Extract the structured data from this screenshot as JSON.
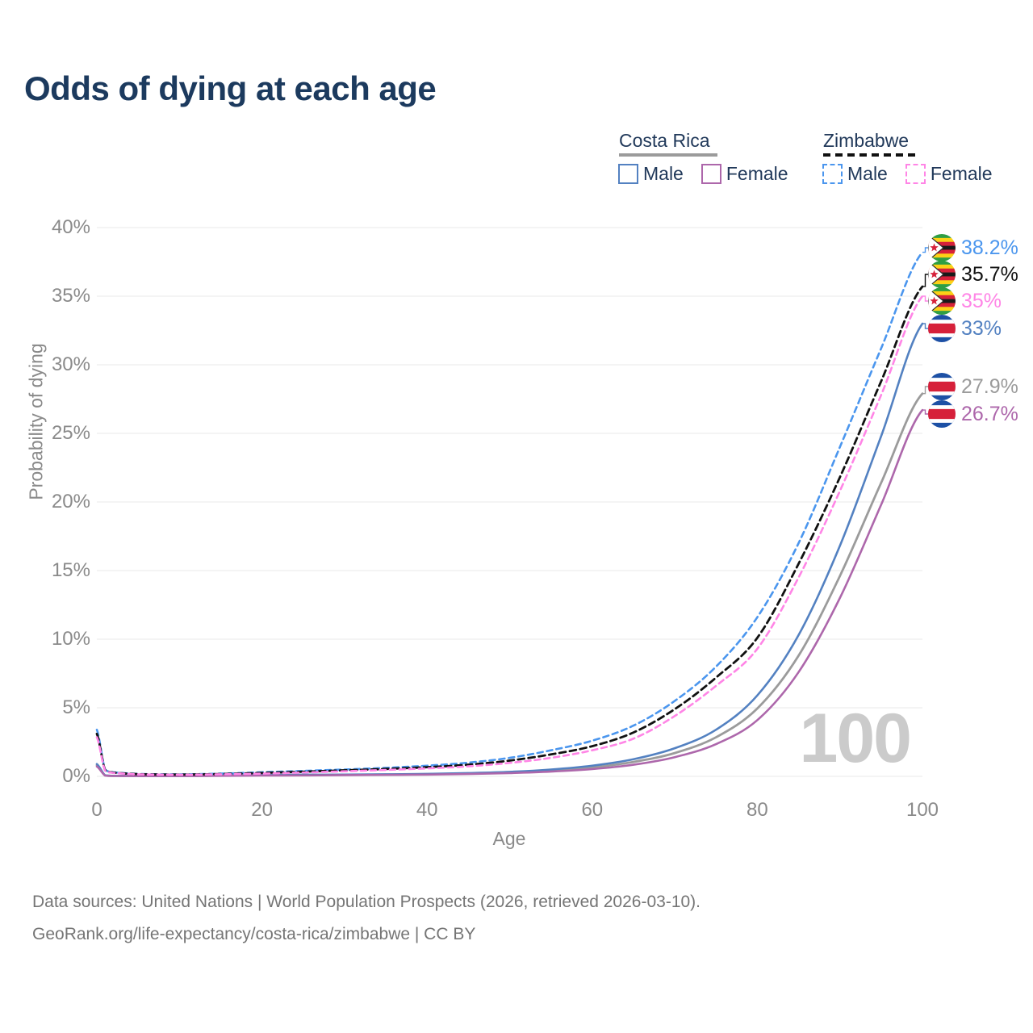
{
  "title": "Odds of dying at each age",
  "watermark_age": "100",
  "legend": {
    "groups": [
      {
        "id": "costa-rica",
        "country": "Costa Rica",
        "male_label": "Male",
        "female_label": "Female"
      },
      {
        "id": "zimbabwe",
        "country": "Zimbabwe",
        "male_label": "Male",
        "female_label": "Female"
      }
    ]
  },
  "axes": {
    "x_title": "Age",
    "y_title": "Probability of dying"
  },
  "chart_data": {
    "type": "line",
    "title": "Odds of dying at each age",
    "xlabel": "Age",
    "ylabel": "Probability of dying",
    "xlim": [
      0,
      100
    ],
    "ylim": [
      0,
      40
    ],
    "grid": "horizontal",
    "x_ticks": [
      0,
      20,
      40,
      60,
      80,
      100
    ],
    "x_tick_labels": [
      "0",
      "20",
      "40",
      "60",
      "80",
      "100"
    ],
    "y_ticks": [
      0,
      5,
      10,
      15,
      20,
      25,
      30,
      35,
      40
    ],
    "y_tick_labels": [
      "0%",
      "5%",
      "10%",
      "15%",
      "20%",
      "25%",
      "30%",
      "35%",
      "40%"
    ],
    "ages": [
      0,
      1,
      2,
      5,
      10,
      15,
      20,
      25,
      30,
      35,
      40,
      45,
      50,
      55,
      60,
      65,
      70,
      75,
      80,
      85,
      90,
      95,
      100
    ],
    "series": [
      {
        "id": "zimbabwe-male",
        "name": "Zimbabwe Male",
        "country": "Zimbabwe",
        "sex": "Male",
        "color": "#4b96ee",
        "dash": "7 5",
        "width": 2.6,
        "flag": "zimbabwe",
        "end_label": "38.2%",
        "end_value": 38.2,
        "values": [
          3.4,
          0.5,
          0.3,
          0.18,
          0.15,
          0.2,
          0.3,
          0.4,
          0.5,
          0.62,
          0.78,
          1.0,
          1.35,
          1.9,
          2.6,
          3.7,
          5.5,
          8.0,
          11.6,
          17.0,
          24.0,
          31.2,
          38.2
        ]
      },
      {
        "id": "zimbabwe-both",
        "name": "Zimbabwe Both sexes",
        "country": "Zimbabwe",
        "sex": "Both",
        "color": "#111111",
        "dash": "8 5",
        "width": 2.8,
        "flag": "zimbabwe",
        "end_label": "35.7%",
        "end_value": 35.7,
        "values": [
          3.1,
          0.46,
          0.27,
          0.16,
          0.13,
          0.17,
          0.25,
          0.34,
          0.44,
          0.54,
          0.67,
          0.85,
          1.15,
          1.6,
          2.2,
          3.2,
          4.9,
          7.2,
          10.1,
          15.5,
          21.8,
          28.8,
          35.7
        ]
      },
      {
        "id": "zimbabwe-female",
        "name": "Zimbabwe Female",
        "country": "Zimbabwe",
        "sex": "Female",
        "color": "#ff85e6",
        "dash": "7 5",
        "width": 2.6,
        "flag": "zimbabwe",
        "end_label": "35%",
        "end_value": 35,
        "values": [
          2.85,
          0.42,
          0.25,
          0.15,
          0.12,
          0.15,
          0.2,
          0.28,
          0.37,
          0.47,
          0.58,
          0.73,
          0.98,
          1.35,
          1.9,
          2.75,
          4.4,
          6.6,
          9.3,
          14.5,
          20.8,
          27.8,
          35.0
        ]
      },
      {
        "id": "costa-rica-male",
        "name": "Costa Rica Male",
        "country": "Costa Rica",
        "sex": "Male",
        "color": "#5381c1",
        "dash": "",
        "width": 2.6,
        "flag": "costa-rica",
        "end_label": "33%",
        "end_value": 33,
        "values": [
          0.9,
          0.08,
          0.04,
          0.03,
          0.03,
          0.06,
          0.1,
          0.12,
          0.13,
          0.15,
          0.18,
          0.24,
          0.33,
          0.5,
          0.78,
          1.25,
          2.05,
          3.4,
          5.9,
          10.3,
          16.8,
          24.8,
          33.0
        ]
      },
      {
        "id": "costa-rica-both",
        "name": "Costa Rica Both sexes",
        "country": "Costa Rica",
        "sex": "Both",
        "color": "#9b9b9b",
        "dash": "",
        "width": 2.8,
        "flag": "costa-rica",
        "end_label": "27.9%",
        "end_value": 27.9,
        "values": [
          0.82,
          0.07,
          0.035,
          0.027,
          0.027,
          0.05,
          0.08,
          0.1,
          0.11,
          0.13,
          0.16,
          0.21,
          0.28,
          0.42,
          0.65,
          1.05,
          1.7,
          2.85,
          4.95,
          8.8,
          14.6,
          21.4,
          27.9
        ]
      },
      {
        "id": "costa-rica-female",
        "name": "Costa Rica Female",
        "country": "Costa Rica",
        "sex": "Female",
        "color": "#ad67ab",
        "dash": "",
        "width": 2.6,
        "flag": "costa-rica",
        "end_label": "26.7%",
        "end_value": 26.7,
        "values": [
          0.72,
          0.06,
          0.03,
          0.024,
          0.024,
          0.04,
          0.06,
          0.07,
          0.09,
          0.11,
          0.13,
          0.17,
          0.24,
          0.35,
          0.53,
          0.85,
          1.4,
          2.35,
          4.1,
          7.6,
          13.0,
          19.8,
          26.7
        ]
      }
    ]
  },
  "footer": {
    "line1": "Data sources: United Nations | World Population Prospects (2026, retrieved 2026-03-10).",
    "line2": "GeoRank.org/life-expectancy/costa-rica/zimbabwe | CC BY"
  }
}
